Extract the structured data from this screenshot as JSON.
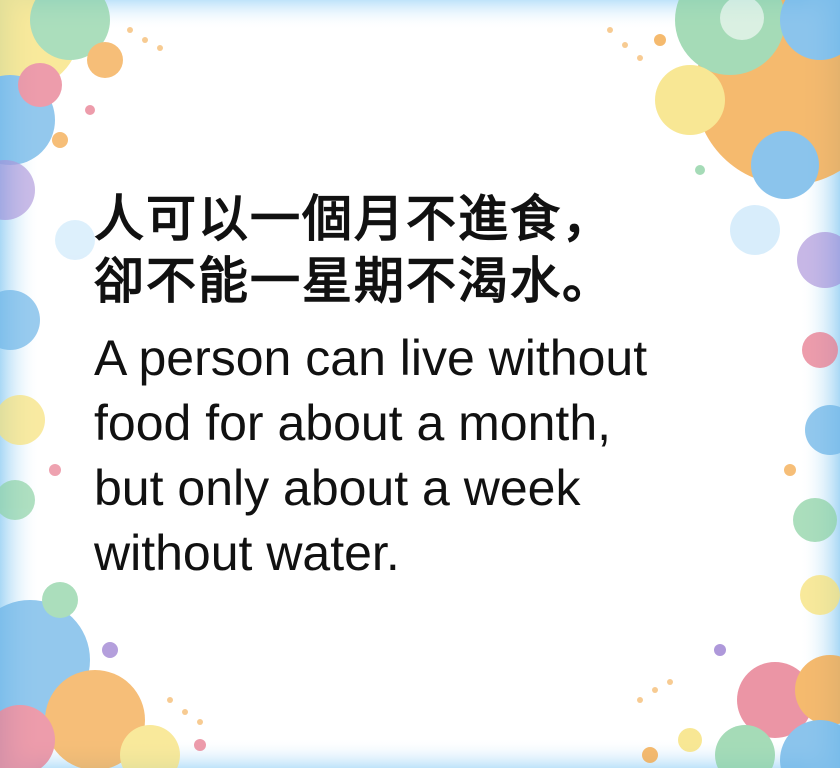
{
  "quote": {
    "chinese_lines": [
      "人可以一個月不進食，",
      "卻不能一星期不渴水。"
    ],
    "english_lines": [
      "A person can live without",
      "food for about a month,",
      "but only about a week",
      "without water."
    ]
  },
  "colors": {
    "text": "#111111",
    "background": "#ffffff",
    "frame_blue": "#6fb6e8",
    "frame_orange": "#f3a94b",
    "frame_yellow": "#f7e27a",
    "frame_green": "#8fd3a6",
    "frame_pink": "#e77b8f",
    "frame_purple": "#9b7fd1"
  }
}
